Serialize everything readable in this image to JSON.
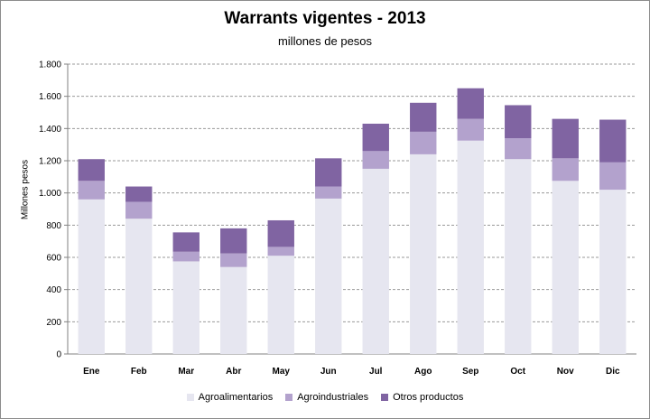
{
  "chart_data": {
    "type": "bar",
    "stacked": true,
    "title": "Warrants vigentes - 2013",
    "subtitle": "millones de pesos",
    "xlabel": "",
    "ylabel": "Millones pesos",
    "ylim": [
      0,
      1800
    ],
    "yticks": [
      0,
      200,
      400,
      600,
      800,
      1000,
      1200,
      1400,
      1600,
      1800
    ],
    "ytick_labels": [
      "0",
      "200",
      "400",
      "600",
      "800",
      "1.000",
      "1.200",
      "1.400",
      "1.600",
      "1.800"
    ],
    "grid": true,
    "legend_position": "bottom",
    "categories": [
      "Ene",
      "Feb",
      "Mar",
      "Abr",
      "May",
      "Jun",
      "Jul",
      "Ago",
      "Sep",
      "Oct",
      "Nov",
      "Dic"
    ],
    "series": [
      {
        "name": "Agroalimentarios",
        "color": "#e6e6f0",
        "values": [
          960,
          840,
          575,
          540,
          610,
          965,
          1150,
          1240,
          1325,
          1210,
          1075,
          1020
        ]
      },
      {
        "name": "Agroindustriales",
        "color": "#b3a2cd",
        "values": [
          115,
          105,
          60,
          85,
          55,
          75,
          110,
          140,
          135,
          130,
          140,
          170
        ]
      },
      {
        "name": "Otros productos",
        "color": "#8064a2",
        "values": [
          135,
          95,
          120,
          155,
          165,
          175,
          170,
          180,
          190,
          205,
          245,
          265
        ]
      }
    ]
  }
}
